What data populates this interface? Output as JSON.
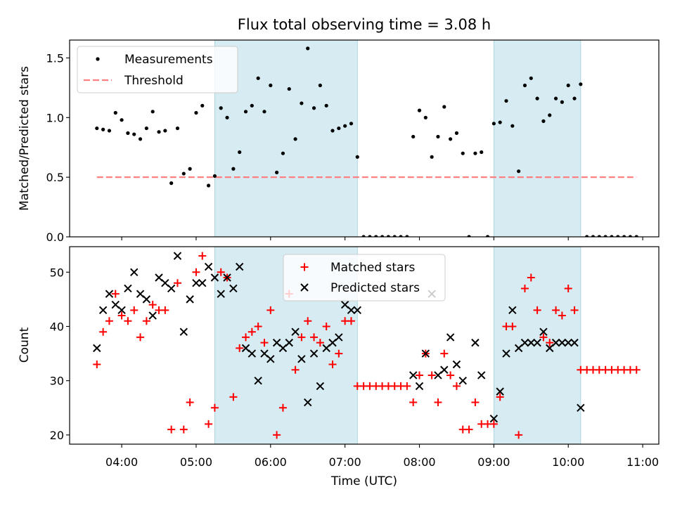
{
  "title": "Flux total observing time = 3.08 h",
  "chart_data": [
    {
      "type": "scatter",
      "ylabel": "Matched/Predicted stars",
      "ylim": [
        0,
        1.65
      ],
      "yticks": [
        0.0,
        0.5,
        1.0,
        1.5
      ],
      "ytick_labels": [
        "0.0",
        "0.5",
        "1.0",
        "1.5"
      ],
      "shaded_time_ranges": [
        [
          "05:15",
          "07:10"
        ],
        [
          "09:00",
          "10:10"
        ]
      ],
      "legend": {
        "position": "upper-left",
        "entries": [
          "Measurements",
          "Threshold"
        ]
      },
      "threshold": {
        "name": "Threshold",
        "value": 0.5,
        "x_start": "03:40",
        "x_end": "10:55",
        "color": "#ff8080",
        "style": "dashed"
      },
      "series": [
        {
          "name": "Measurements",
          "marker": "dot",
          "color": "#000000",
          "points": [
            [
              "03:40",
              0.91
            ],
            [
              "03:45",
              0.9
            ],
            [
              "03:50",
              0.89
            ],
            [
              "03:55",
              1.04
            ],
            [
              "04:00",
              0.98
            ],
            [
              "04:05",
              0.87
            ],
            [
              "04:10",
              0.86
            ],
            [
              "04:15",
              0.82
            ],
            [
              "04:20",
              0.91
            ],
            [
              "04:25",
              1.05
            ],
            [
              "04:30",
              0.88
            ],
            [
              "04:35",
              0.89
            ],
            [
              "04:40",
              0.45
            ],
            [
              "04:45",
              0.91
            ],
            [
              "04:50",
              0.53
            ],
            [
              "04:55",
              0.57
            ],
            [
              "05:00",
              1.04
            ],
            [
              "05:05",
              1.1
            ],
            [
              "05:10",
              0.43
            ],
            [
              "05:15",
              0.51
            ],
            [
              "05:20",
              1.08
            ],
            [
              "05:25",
              1.0
            ],
            [
              "05:30",
              0.57
            ],
            [
              "05:35",
              0.71
            ],
            [
              "05:40",
              1.05
            ],
            [
              "05:45",
              1.1
            ],
            [
              "05:50",
              1.33
            ],
            [
              "05:55",
              1.05
            ],
            [
              "06:00",
              1.27
            ],
            [
              "06:05",
              0.54
            ],
            [
              "06:10",
              0.7
            ],
            [
              "06:15",
              1.24
            ],
            [
              "06:20",
              0.82
            ],
            [
              "06:25",
              1.12
            ],
            [
              "06:30",
              1.58
            ],
            [
              "06:35",
              1.08
            ],
            [
              "06:40",
              1.27
            ],
            [
              "06:45",
              1.1
            ],
            [
              "06:50",
              0.89
            ],
            [
              "06:55",
              0.91
            ],
            [
              "07:00",
              0.93
            ],
            [
              "07:05",
              0.95
            ],
            [
              "07:10",
              0.67
            ],
            [
              "07:15",
              0.0
            ],
            [
              "07:20",
              0.0
            ],
            [
              "07:25",
              0.0
            ],
            [
              "07:30",
              0.0
            ],
            [
              "07:35",
              0.0
            ],
            [
              "07:40",
              0.0
            ],
            [
              "07:45",
              0.0
            ],
            [
              "07:50",
              0.0
            ],
            [
              "07:55",
              0.84
            ],
            [
              "08:00",
              1.06
            ],
            [
              "08:05",
              1.0
            ],
            [
              "08:10",
              0.67
            ],
            [
              "08:15",
              0.84
            ],
            [
              "08:20",
              1.09
            ],
            [
              "08:25",
              0.82
            ],
            [
              "08:30",
              0.87
            ],
            [
              "08:35",
              0.7
            ],
            [
              "08:40",
              0.0
            ],
            [
              "08:45",
              0.7
            ],
            [
              "08:50",
              0.71
            ],
            [
              "08:55",
              0.0
            ],
            [
              "09:00",
              0.95
            ],
            [
              "09:05",
              0.96
            ],
            [
              "09:10",
              1.14
            ],
            [
              "09:15",
              0.93
            ],
            [
              "09:20",
              0.55
            ],
            [
              "09:25",
              1.27
            ],
            [
              "09:30",
              1.33
            ],
            [
              "09:35",
              1.16
            ],
            [
              "09:40",
              0.97
            ],
            [
              "09:45",
              1.02
            ],
            [
              "09:50",
              1.16
            ],
            [
              "09:55",
              1.13
            ],
            [
              "10:00",
              1.27
            ],
            [
              "10:05",
              1.16
            ],
            [
              "10:10",
              1.28
            ],
            [
              "10:15",
              0.0
            ],
            [
              "10:20",
              0.0
            ],
            [
              "10:25",
              0.0
            ],
            [
              "10:30",
              0.0
            ],
            [
              "10:35",
              0.0
            ],
            [
              "10:40",
              0.0
            ],
            [
              "10:45",
              0.0
            ],
            [
              "10:50",
              0.0
            ],
            [
              "10:55",
              0.0
            ]
          ]
        }
      ]
    },
    {
      "type": "scatter",
      "xlabel": "Time (UTC)",
      "ylabel": "Count",
      "ylim": [
        18.3,
        54.7
      ],
      "yticks": [
        20,
        30,
        40,
        50
      ],
      "ytick_labels": [
        "20",
        "30",
        "40",
        "50"
      ],
      "xlim": [
        "03:18",
        "11:13"
      ],
      "xticks": [
        "04:00",
        "05:00",
        "06:00",
        "07:00",
        "08:00",
        "09:00",
        "10:00",
        "11:00"
      ],
      "xtick_labels": [
        "04:00",
        "05:00",
        "06:00",
        "07:00",
        "08:00",
        "09:00",
        "10:00",
        "11:00"
      ],
      "shaded_time_ranges": [
        [
          "05:15",
          "07:10"
        ],
        [
          "09:00",
          "10:10"
        ]
      ],
      "legend": {
        "position": "upper-center",
        "entries": [
          "Matched stars",
          "Predicted stars"
        ]
      },
      "series": [
        {
          "name": "Matched stars",
          "marker": "plus",
          "color": "#ff0000",
          "points": [
            [
              "03:40",
              33
            ],
            [
              "03:45",
              39
            ],
            [
              "03:50",
              41
            ],
            [
              "03:55",
              46
            ],
            [
              "04:00",
              42
            ],
            [
              "04:05",
              41
            ],
            [
              "04:10",
              43
            ],
            [
              "04:15",
              38
            ],
            [
              "04:20",
              41
            ],
            [
              "04:25",
              44
            ],
            [
              "04:30",
              43
            ],
            [
              "04:35",
              43
            ],
            [
              "04:40",
              21
            ],
            [
              "04:45",
              48
            ],
            [
              "04:50",
              21
            ],
            [
              "04:55",
              26
            ],
            [
              "05:00",
              50
            ],
            [
              "05:05",
              53
            ],
            [
              "05:10",
              22
            ],
            [
              "05:15",
              25
            ],
            [
              "05:20",
              50
            ],
            [
              "05:25",
              49
            ],
            [
              "05:30",
              27
            ],
            [
              "05:35",
              36
            ],
            [
              "05:40",
              38
            ],
            [
              "05:45",
              39
            ],
            [
              "05:50",
              40
            ],
            [
              "05:55",
              37
            ],
            [
              "06:00",
              43
            ],
            [
              "06:05",
              20
            ],
            [
              "06:10",
              25
            ],
            [
              "06:15",
              46
            ],
            [
              "06:20",
              32
            ],
            [
              "06:25",
              38
            ],
            [
              "06:30",
              41
            ],
            [
              "06:35",
              38
            ],
            [
              "06:40",
              37
            ],
            [
              "06:45",
              40
            ],
            [
              "06:50",
              33
            ],
            [
              "06:55",
              35
            ],
            [
              "07:00",
              41
            ],
            [
              "07:05",
              41
            ],
            [
              "07:10",
              29
            ],
            [
              "07:15",
              29
            ],
            [
              "07:20",
              29
            ],
            [
              "07:25",
              29
            ],
            [
              "07:30",
              29
            ],
            [
              "07:35",
              29
            ],
            [
              "07:40",
              29
            ],
            [
              "07:45",
              29
            ],
            [
              "07:50",
              29
            ],
            [
              "07:55",
              26
            ],
            [
              "08:00",
              31
            ],
            [
              "08:05",
              35
            ],
            [
              "08:10",
              31
            ],
            [
              "08:15",
              26
            ],
            [
              "08:20",
              35
            ],
            [
              "08:25",
              31
            ],
            [
              "08:30",
              29
            ],
            [
              "08:35",
              21
            ],
            [
              "08:40",
              21
            ],
            [
              "08:45",
              26
            ],
            [
              "08:50",
              22
            ],
            [
              "08:55",
              22
            ],
            [
              "09:00",
              22
            ],
            [
              "09:05",
              27
            ],
            [
              "09:10",
              40
            ],
            [
              "09:15",
              40
            ],
            [
              "09:20",
              20
            ],
            [
              "09:25",
              47
            ],
            [
              "09:30",
              49
            ],
            [
              "09:35",
              43
            ],
            [
              "09:40",
              38
            ],
            [
              "09:45",
              37
            ],
            [
              "09:50",
              43
            ],
            [
              "09:55",
              42
            ],
            [
              "10:00",
              47
            ],
            [
              "10:05",
              43
            ],
            [
              "10:10",
              32
            ],
            [
              "10:15",
              32
            ],
            [
              "10:20",
              32
            ],
            [
              "10:25",
              32
            ],
            [
              "10:30",
              32
            ],
            [
              "10:35",
              32
            ],
            [
              "10:40",
              32
            ],
            [
              "10:45",
              32
            ],
            [
              "10:50",
              32
            ],
            [
              "10:55",
              32
            ]
          ]
        },
        {
          "name": "Predicted stars",
          "marker": "x",
          "color": "#000000",
          "points": [
            [
              "03:40",
              36
            ],
            [
              "03:45",
              43
            ],
            [
              "03:50",
              46
            ],
            [
              "03:55",
              44
            ],
            [
              "04:00",
              43
            ],
            [
              "04:05",
              47
            ],
            [
              "04:10",
              50
            ],
            [
              "04:15",
              46
            ],
            [
              "04:20",
              45
            ],
            [
              "04:25",
              42
            ],
            [
              "04:30",
              49
            ],
            [
              "04:35",
              48
            ],
            [
              "04:40",
              47
            ],
            [
              "04:45",
              53
            ],
            [
              "04:50",
              39
            ],
            [
              "04:55",
              45
            ],
            [
              "05:00",
              48
            ],
            [
              "05:05",
              48
            ],
            [
              "05:10",
              51
            ],
            [
              "05:15",
              49
            ],
            [
              "05:20",
              46
            ],
            [
              "05:25",
              49
            ],
            [
              "05:30",
              47
            ],
            [
              "05:35",
              51
            ],
            [
              "05:40",
              36
            ],
            [
              "05:45",
              35
            ],
            [
              "05:50",
              30
            ],
            [
              "05:55",
              35
            ],
            [
              "06:00",
              34
            ],
            [
              "06:05",
              37
            ],
            [
              "06:10",
              36
            ],
            [
              "06:15",
              37
            ],
            [
              "06:20",
              39
            ],
            [
              "06:25",
              34
            ],
            [
              "06:30",
              26
            ],
            [
              "06:35",
              35
            ],
            [
              "06:40",
              29
            ],
            [
              "06:45",
              36
            ],
            [
              "06:50",
              37
            ],
            [
              "06:55",
              38
            ],
            [
              "07:00",
              44
            ],
            [
              "07:05",
              43
            ],
            [
              "07:10",
              43
            ],
            [
              "07:55",
              31
            ],
            [
              "08:00",
              29
            ],
            [
              "08:05",
              35
            ],
            [
              "08:10",
              46
            ],
            [
              "08:15",
              31
            ],
            [
              "08:20",
              32
            ],
            [
              "08:25",
              38
            ],
            [
              "08:30",
              33
            ],
            [
              "08:35",
              30
            ],
            [
              "08:45",
              37
            ],
            [
              "08:50",
              31
            ],
            [
              "09:00",
              23
            ],
            [
              "09:05",
              28
            ],
            [
              "09:10",
              35
            ],
            [
              "09:15",
              43
            ],
            [
              "09:20",
              36
            ],
            [
              "09:25",
              37
            ],
            [
              "09:30",
              37
            ],
            [
              "09:35",
              37
            ],
            [
              "09:40",
              39
            ],
            [
              "09:45",
              36
            ],
            [
              "09:50",
              37
            ],
            [
              "09:55",
              37
            ],
            [
              "10:00",
              37
            ],
            [
              "10:05",
              37
            ],
            [
              "10:10",
              25
            ]
          ]
        }
      ]
    }
  ]
}
